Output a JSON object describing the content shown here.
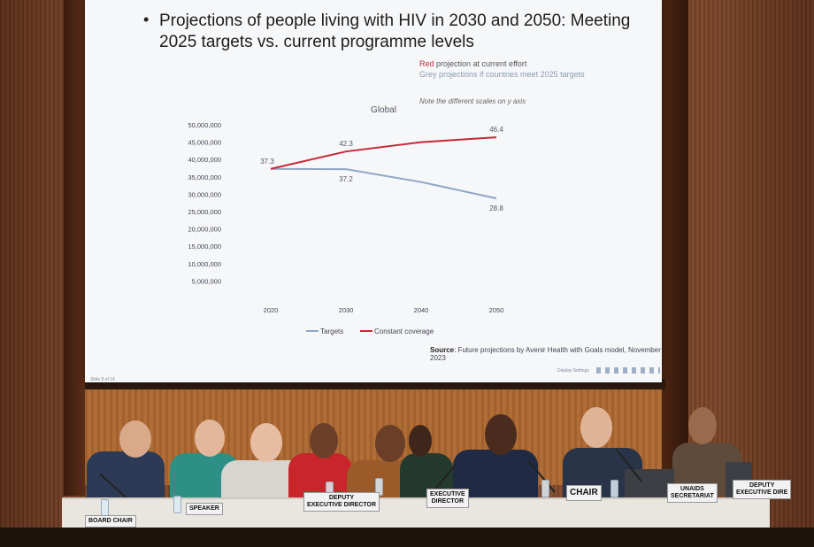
{
  "slide": {
    "bullet": "•",
    "title": "Projections of people living with HIV in 2030 and 2050: Meeting 2025 targets vs. current programme levels",
    "legend_note": {
      "red_word": "Red",
      "red_text": " projection at current effort",
      "grey_word": "Grey",
      "grey_text": " projections if countries meet 2025 targets"
    },
    "scale_note": "Note the different scales on y axis",
    "source_label": "Source",
    "source_text": ": Future projections by Avenir Health with Goals model, November 2023",
    "slide_number": "Slide 8 of 14",
    "controls_label": "Display Settings"
  },
  "chart_data": {
    "type": "line",
    "title": "Global",
    "x": [
      "2020",
      "2030",
      "2040",
      "2050"
    ],
    "ylim": [
      0,
      50000000
    ],
    "yticks": [
      "5,000,000",
      "10,000,000",
      "15,000,000",
      "20,000,000",
      "25,000,000",
      "30,000,000",
      "35,000,000",
      "40,000,000",
      "45,000,000",
      "50,000,000"
    ],
    "ytick_values": [
      5000000,
      10000000,
      15000000,
      20000000,
      25000000,
      30000000,
      35000000,
      40000000,
      45000000,
      50000000
    ],
    "grid": false,
    "legend_position": "bottom",
    "series": [
      {
        "name": "Targets",
        "color": "#8fa7c4",
        "values": [
          37300000,
          37200000,
          33500000,
          28800000
        ],
        "labels": [
          "",
          "37.2",
          "",
          "28.8"
        ]
      },
      {
        "name": "Constant coverage",
        "color": "#c8283a",
        "values": [
          37300000,
          42300000,
          45000000,
          46400000
        ],
        "labels": [
          "37.3",
          "42.3",
          "",
          "46.4"
        ]
      }
    ]
  },
  "placards": {
    "p1": "DEPUTY\nEXECUTIVE DIRECTOR",
    "p2": "EXECUTIVE\nDIRECTOR",
    "p3": "CHAIR",
    "p4": "UNAIDS\nSECRETARIAT",
    "p5": "DEPUTY\nEXECUTIVE DIRE",
    "p6": "SPEAKER",
    "p7": "BOARD CHAIR"
  }
}
